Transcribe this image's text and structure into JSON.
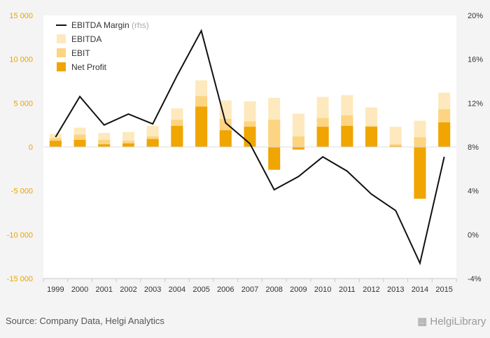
{
  "chart_data": {
    "type": "bar",
    "categories": [
      "1999",
      "2000",
      "2001",
      "2002",
      "2003",
      "2004",
      "2005",
      "2006",
      "2007",
      "2008",
      "2009",
      "2010",
      "2011",
      "2012",
      "2013",
      "2014",
      "2015"
    ],
    "series": [
      {
        "name": "EBITDA",
        "type": "bar",
        "color": "#fde9bd",
        "values": [
          1500,
          2200,
          1600,
          1700,
          2400,
          4400,
          7600,
          5300,
          5200,
          5600,
          3800,
          5700,
          5900,
          4500,
          2300,
          3000,
          6200
        ]
      },
      {
        "name": "EBIT",
        "type": "bar",
        "color": "#fdd481",
        "values": [
          1000,
          1400,
          800,
          700,
          1200,
          3100,
          5800,
          3200,
          2900,
          3100,
          1200,
          3300,
          3600,
          2400,
          300,
          1100,
          4300
        ]
      },
      {
        "name": "Net Profit",
        "type": "bar",
        "color": "#f0a500",
        "values": [
          700,
          800,
          300,
          400,
          900,
          2400,
          4600,
          1900,
          2300,
          -2600,
          -300,
          2300,
          2400,
          2300,
          100,
          -5900,
          2800
        ]
      },
      {
        "name": "EBITDA Margin",
        "type": "line",
        "axis": "right",
        "color": "#111111",
        "values": [
          8.9,
          12.6,
          10.0,
          11.0,
          10.1,
          14.5,
          18.6,
          10.2,
          8.3,
          4.1,
          5.3,
          7.1,
          5.8,
          3.7,
          2.2,
          -2.6,
          7.1
        ]
      }
    ],
    "y_left": {
      "ticks": [
        15000,
        10000,
        5000,
        0,
        -5000,
        -10000,
        -15000
      ],
      "tick_labels": [
        "15 000",
        "10 000",
        "5 000",
        "0",
        "-5 000",
        "-10 000",
        "-15 000"
      ],
      "range": [
        -15000,
        15000
      ]
    },
    "y_right": {
      "ticks": [
        20,
        16,
        12,
        8,
        4,
        0,
        -4
      ],
      "tick_labels": [
        "20%",
        "16%",
        "12%",
        "8%",
        "4%",
        "0%",
        "-4%"
      ],
      "range": [
        -4,
        20
      ]
    },
    "legend": {
      "items": [
        {
          "label": "EBITDA Margin",
          "suffix": "(rhs)",
          "kind": "line",
          "color": "#111111"
        },
        {
          "label": "EBITDA",
          "kind": "box",
          "color": "#fde9bd"
        },
        {
          "label": "EBIT",
          "kind": "box",
          "color": "#fdd481"
        },
        {
          "label": "Net Profit",
          "kind": "box",
          "color": "#f0a500"
        }
      ],
      "position": "top-left"
    },
    "grid": false
  },
  "footer": {
    "source": "Source: Company Data, Helgi Analytics",
    "brand": "HelgiLibrary"
  }
}
